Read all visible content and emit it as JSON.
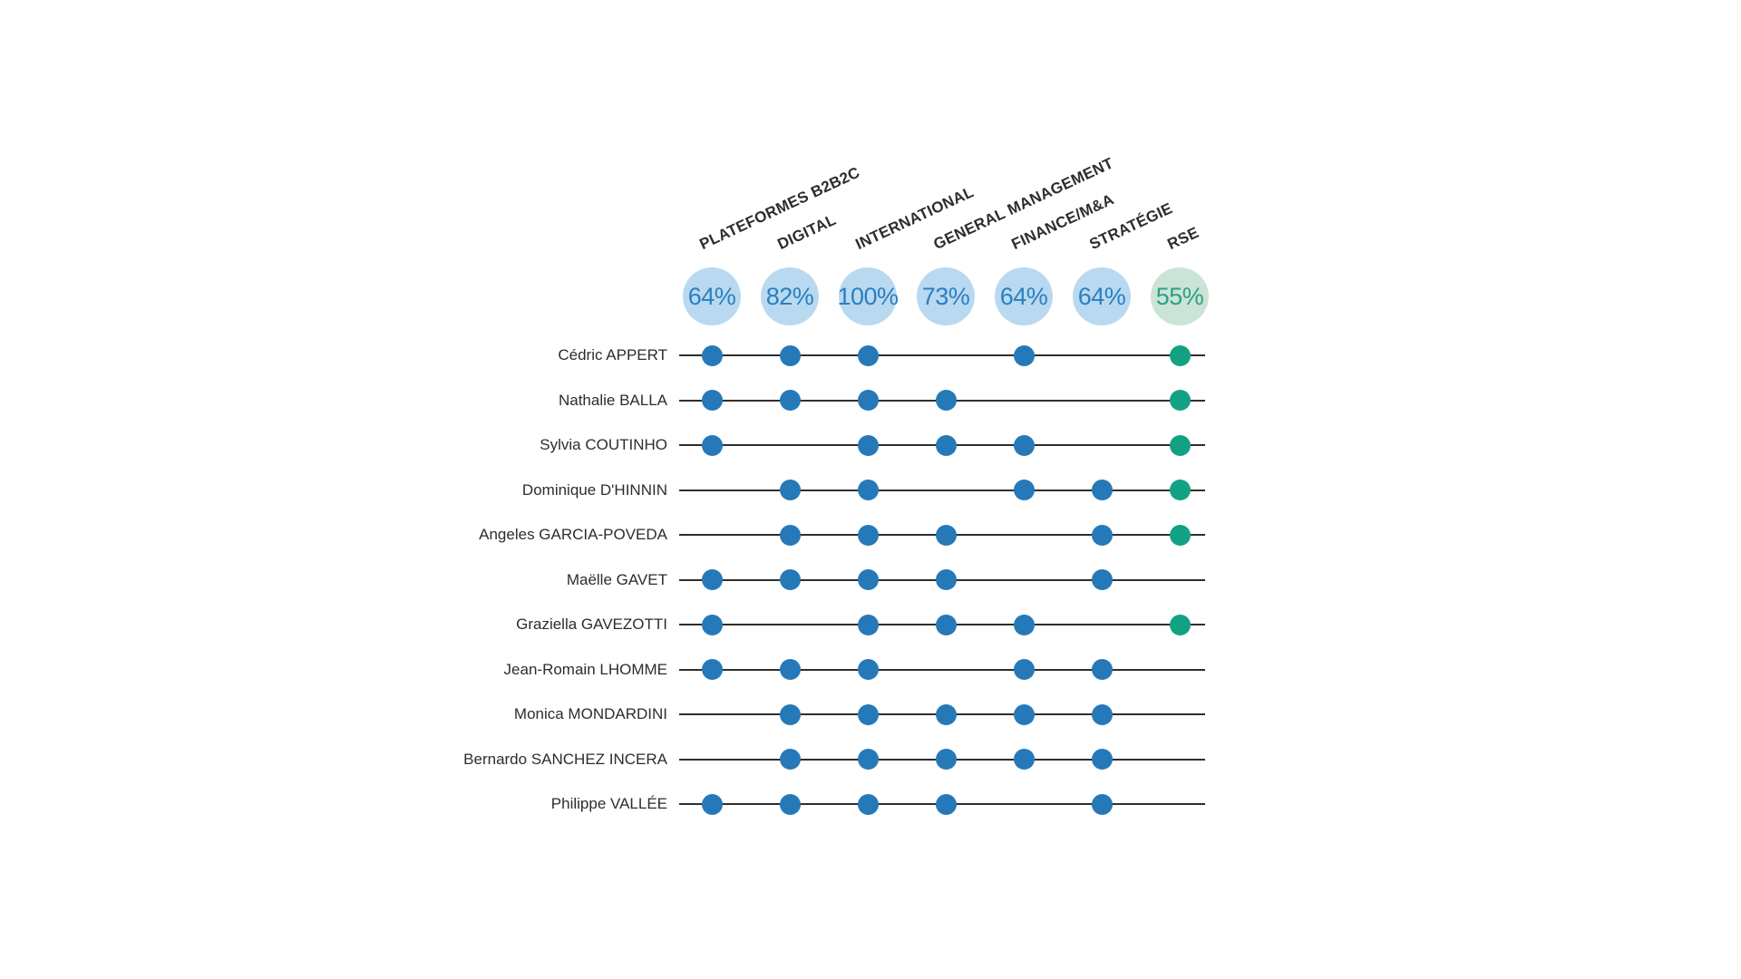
{
  "chart_data": {
    "type": "table",
    "description": "Board members skills matrix: dots mark each member's competencies; header circles show the share of members holding each competency.",
    "columns": [
      {
        "label": "PLATEFORMES B2B2C",
        "percent": 64,
        "percent_label": "64%",
        "theme": "blue"
      },
      {
        "label": "DIGITAL",
        "percent": 82,
        "percent_label": "82%",
        "theme": "blue"
      },
      {
        "label": "INTERNATIONAL",
        "percent": 100,
        "percent_label": "100%",
        "theme": "blue"
      },
      {
        "label": "GENERAL MANAGEMENT",
        "percent": 73,
        "percent_label": "73%",
        "theme": "blue"
      },
      {
        "label": "FINANCE/M&A",
        "percent": 64,
        "percent_label": "64%",
        "theme": "blue"
      },
      {
        "label": "STRATÉGIE",
        "percent": 64,
        "percent_label": "64%",
        "theme": "blue"
      },
      {
        "label": "RSE",
        "percent": 55,
        "percent_label": "55%",
        "theme": "green"
      }
    ],
    "rows": [
      {
        "name": "Cédric APPERT",
        "skills": [
          1,
          1,
          1,
          0,
          1,
          0,
          1
        ]
      },
      {
        "name": "Nathalie BALLA",
        "skills": [
          1,
          1,
          1,
          1,
          0,
          0,
          1
        ]
      },
      {
        "name": "Sylvia COUTINHO",
        "skills": [
          1,
          0,
          1,
          1,
          1,
          0,
          1
        ]
      },
      {
        "name": "Dominique D'HINNIN",
        "skills": [
          0,
          1,
          1,
          0,
          1,
          1,
          1
        ]
      },
      {
        "name": "Angeles GARCIA-POVEDA",
        "skills": [
          0,
          1,
          1,
          1,
          0,
          1,
          1
        ]
      },
      {
        "name": "Maëlle GAVET",
        "skills": [
          1,
          1,
          1,
          1,
          0,
          1,
          0
        ]
      },
      {
        "name": "Graziella GAVEZOTTI",
        "skills": [
          1,
          0,
          1,
          1,
          1,
          0,
          1
        ]
      },
      {
        "name": "Jean-Romain LHOMME",
        "skills": [
          1,
          1,
          1,
          0,
          1,
          1,
          0
        ]
      },
      {
        "name": "Monica MONDARDINI",
        "skills": [
          0,
          1,
          1,
          1,
          1,
          1,
          0
        ]
      },
      {
        "name": "Bernardo SANCHEZ INCERA",
        "skills": [
          0,
          1,
          1,
          1,
          1,
          1,
          0
        ]
      },
      {
        "name": "Philippe VALLÉE",
        "skills": [
          1,
          1,
          1,
          1,
          0,
          1,
          0
        ]
      }
    ],
    "colors": {
      "background": "#ffffff",
      "text": "#2d2d2d",
      "line": "#2e2e2e",
      "dot_blue": "#2579b8",
      "dot_green": "#12a283",
      "circle_blue_bg": "#b9d9f0",
      "circle_blue_text": "#2b7fc0",
      "circle_green_bg": "#cbe4d5",
      "circle_green_text": "#2aa183"
    },
    "legend_position": "none",
    "grid": false
  }
}
